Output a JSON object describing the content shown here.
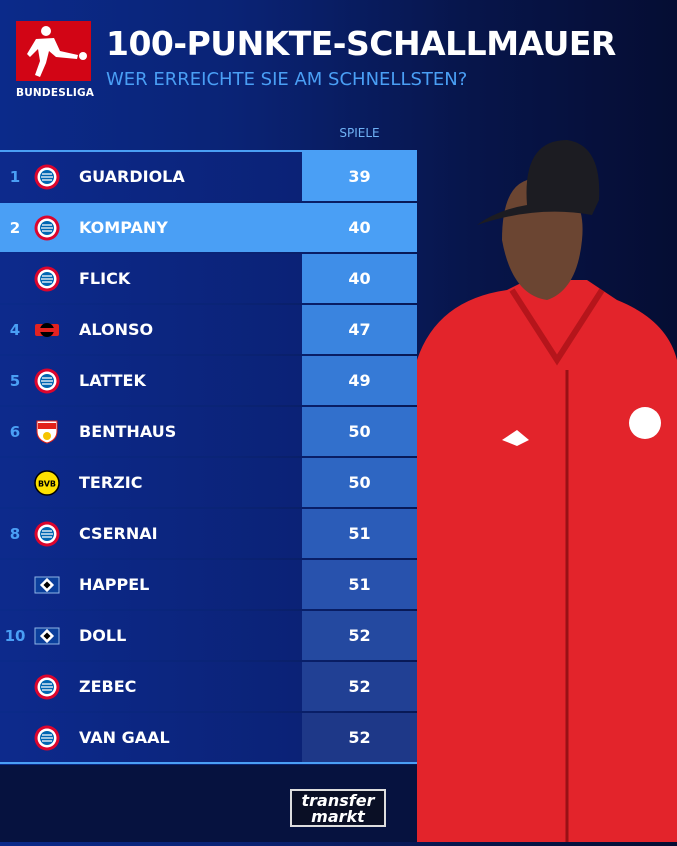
{
  "header": {
    "title": "100-PUNKTE-SCHALLMAUER",
    "subtitle": "WER ERREICHTE SIE AM SCHNELLSTEN?",
    "logo_text": "BUNDESLIGA"
  },
  "table": {
    "column_header": "SPIELE",
    "highlight_color": "#4a9ff5",
    "rows": [
      {
        "rank": "1",
        "crest": "bayern-crest-icon",
        "name": "GUARDIOLA",
        "games": "39",
        "value_bg": "#4a9ff5"
      },
      {
        "rank": "2",
        "crest": "bayern-crest-icon",
        "name": "KOMPANY",
        "games": "40",
        "highlighted": true,
        "value_bg": "#4a9ff5"
      },
      {
        "rank": "",
        "crest": "bayern-crest-icon",
        "name": "FLICK",
        "games": "40",
        "value_bg": "#3f8ee8"
      },
      {
        "rank": "4",
        "crest": "leverkusen-crest-icon",
        "name": "ALONSO",
        "games": "47",
        "value_bg": "#3a84df"
      },
      {
        "rank": "5",
        "crest": "bayern-crest-icon",
        "name": "LATTEK",
        "games": "49",
        "value_bg": "#367ad6"
      },
      {
        "rank": "6",
        "crest": "stuttgart-crest-icon",
        "name": "BENTHAUS",
        "games": "50",
        "value_bg": "#3270cc"
      },
      {
        "rank": "",
        "crest": "dortmund-crest-icon",
        "name": "TERZIC",
        "games": "50",
        "value_bg": "#2e66c2"
      },
      {
        "rank": "8",
        "crest": "bayern-crest-icon",
        "name": "CSERNAI",
        "games": "51",
        "value_bg": "#2b5cb8"
      },
      {
        "rank": "",
        "crest": "hsv-crest-icon",
        "name": "HAPPEL",
        "games": "51",
        "value_bg": "#2852ad"
      },
      {
        "rank": "10",
        "crest": "hsv-crest-icon",
        "name": "DOLL",
        "games": "52",
        "value_bg": "#2449a0"
      },
      {
        "rank": "",
        "crest": "bayern-crest-icon",
        "name": "ZEBEC",
        "games": "52",
        "value_bg": "#214094"
      },
      {
        "rank": "",
        "crest": "bayern-crest-icon",
        "name": "VAN GAAL",
        "games": "52",
        "value_bg": "#1e3888"
      }
    ]
  },
  "footer": {
    "brand_line1": "transfer",
    "brand_line2": "markt"
  }
}
